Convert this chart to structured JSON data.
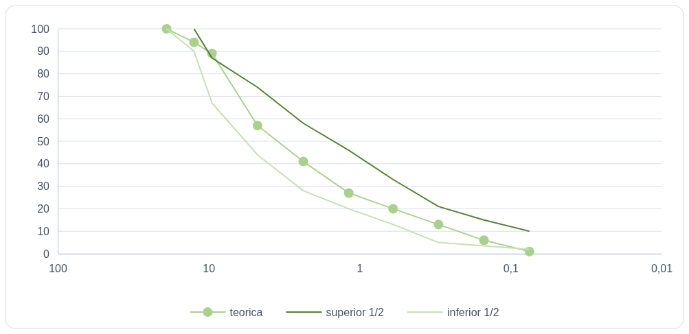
{
  "chart_data": {
    "type": "line",
    "log": "x",
    "xlim": [
      100,
      0.01
    ],
    "xticks": [
      100,
      10,
      1,
      {
        "value": 0.1,
        "label": "0,1"
      },
      {
        "value": 0.01,
        "label": "0,01"
      }
    ],
    "ylim": [
      0,
      100
    ],
    "yticks": [
      0,
      10,
      20,
      30,
      40,
      50,
      60,
      70,
      80,
      90,
      100
    ],
    "grid": "y",
    "legend": "bottom",
    "series": [
      {
        "name": "teorica",
        "color": "#a9d18e",
        "marker": "circle",
        "x": [
          19,
          12.5,
          9.5,
          4.75,
          2.36,
          1.18,
          0.6,
          0.3,
          0.15,
          0.075
        ],
        "values": [
          100,
          94,
          89,
          57,
          41,
          27,
          20,
          13,
          6,
          1
        ]
      },
      {
        "name": "superior 1/2",
        "color": "#548235",
        "marker": "none",
        "x": [
          12.5,
          9.5,
          4.75,
          2.36,
          1.18,
          0.6,
          0.3,
          0.15,
          0.075
        ],
        "values": [
          100,
          87,
          74,
          58,
          46,
          33,
          21,
          15,
          10
        ]
      },
      {
        "name": "inferior 1/2",
        "color": "#c5e0b4",
        "marker": "none",
        "x": [
          19,
          12.5,
          9.5,
          4.75,
          2.36,
          1.18,
          0.6,
          0.3,
          0.15,
          0.075
        ],
        "values": [
          100,
          90,
          67,
          44,
          28,
          20,
          13,
          5,
          3.5,
          2
        ]
      }
    ]
  }
}
